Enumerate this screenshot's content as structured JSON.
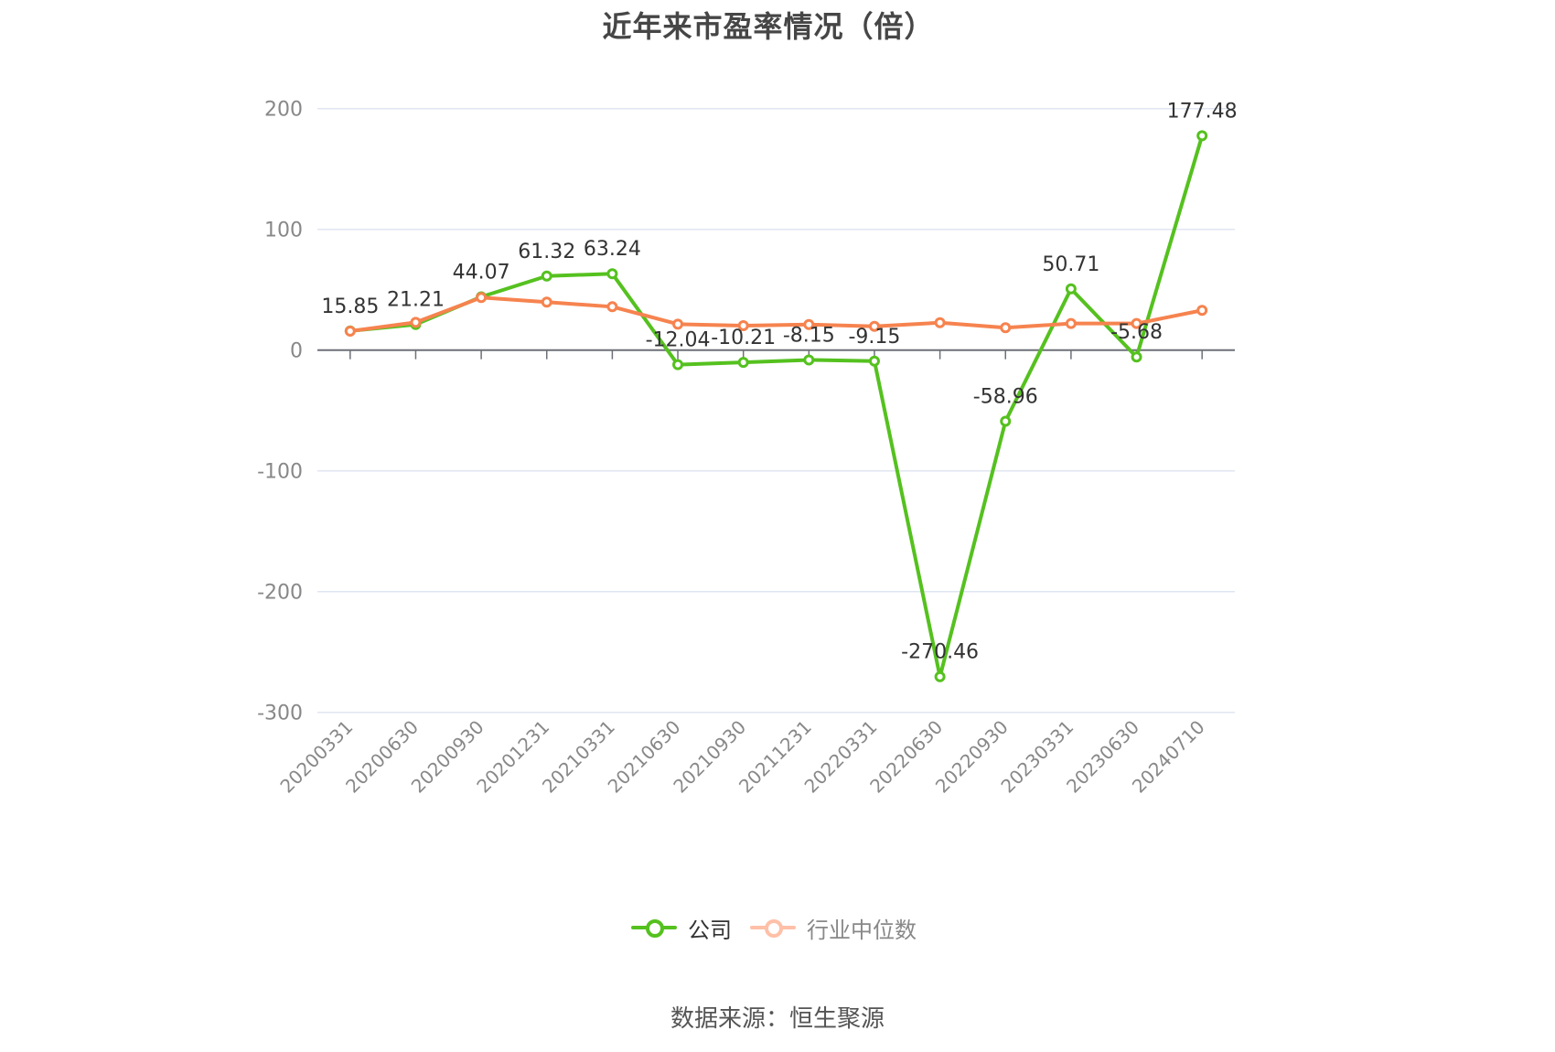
{
  "title": "近年来市盈率情况（倍）",
  "legend": {
    "company": {
      "label": "公司",
      "color": "#55c11f",
      "text_color": "#333333"
    },
    "industry": {
      "label": "行业中位数",
      "color": "#ffc0a8",
      "text_color": "#888888"
    }
  },
  "source": "数据来源：恒生聚源",
  "colors": {
    "company": "#55c11f",
    "industry": "#f6834f",
    "grid": "#e0e6f1",
    "axis": "#6e7079",
    "tick_label": "#888888",
    "data_label": "#333333"
  },
  "chart_data": {
    "type": "line",
    "title": "近年来市盈率情况（倍）",
    "xlabel": "",
    "ylabel": "",
    "ylim": [
      -300,
      200
    ],
    "yticks": [
      200,
      100,
      0,
      -100,
      -200,
      -300
    ],
    "grid": true,
    "legend_position": "bottom",
    "categories": [
      "20200331",
      "20200630",
      "20200930",
      "20201231",
      "20210331",
      "20210630",
      "20210930",
      "20211231",
      "20220331",
      "20220630",
      "20220930",
      "20230331",
      "20230630",
      "20240710"
    ],
    "series": [
      {
        "name": "公司",
        "values": [
          15.85,
          21.21,
          44.07,
          61.32,
          63.24,
          -12.04,
          -10.21,
          -8.15,
          -9.15,
          -270.46,
          -58.96,
          50.71,
          -5.68,
          177.48
        ],
        "labels_shown": true
      },
      {
        "name": "行业中位数",
        "values": [
          15.7,
          23.0,
          43.5,
          39.7,
          35.9,
          21.5,
          20.2,
          21.2,
          19.7,
          22.7,
          18.5,
          22.0,
          22.0,
          32.9
        ],
        "labels_shown": false
      }
    ]
  }
}
